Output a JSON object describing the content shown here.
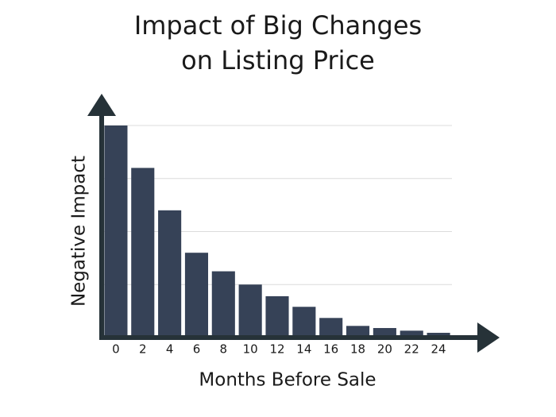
{
  "chart_data": {
    "type": "bar",
    "title": "Impact of Big Changes on Listing Price",
    "xlabel": "Months Before Sale",
    "ylabel": "Negative Impact",
    "categories": [
      0,
      2,
      4,
      6,
      8,
      10,
      12,
      14,
      16,
      18,
      20,
      22,
      24
    ],
    "values": [
      4.0,
      3.2,
      2.4,
      1.6,
      1.25,
      1.0,
      0.78,
      0.58,
      0.37,
      0.22,
      0.18,
      0.13,
      0.09
    ],
    "color": "#364257",
    "ylim": [
      0,
      4
    ],
    "yticks": [
      1,
      2,
      3,
      4
    ],
    "grid": true
  }
}
